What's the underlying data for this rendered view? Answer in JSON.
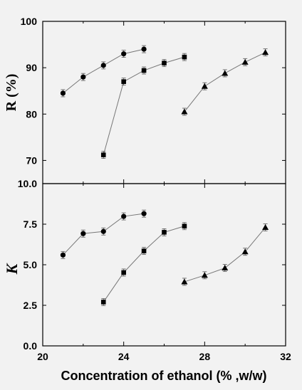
{
  "chart_data": [
    {
      "type": "line",
      "panel": "top",
      "ylabel": "R (%)",
      "xlim": [
        20,
        32
      ],
      "ylim": [
        65,
        100
      ],
      "yticks": [
        70,
        80,
        90,
        100
      ],
      "series": [
        {
          "marker": "circle",
          "x": [
            21,
            22,
            23,
            24,
            25
          ],
          "y": [
            84.5,
            88.0,
            90.5,
            93.0,
            94.0
          ]
        },
        {
          "marker": "square",
          "x": [
            23,
            24,
            25,
            26,
            27
          ],
          "y": [
            71.2,
            87.0,
            89.4,
            91.0,
            92.3
          ]
        },
        {
          "marker": "triangle",
          "x": [
            27,
            28,
            29,
            30,
            31
          ],
          "y": [
            80.5,
            86.0,
            88.8,
            91.2,
            93.3
          ]
        }
      ]
    },
    {
      "type": "line",
      "panel": "bottom",
      "ylabel": "K",
      "xlabel": "Concentration of ethanol (% ,w/w)",
      "xlim": [
        20,
        32
      ],
      "xticks": [
        20,
        24,
        28,
        32
      ],
      "ylim": [
        0,
        10
      ],
      "yticks": [
        "0.0",
        "2.5",
        "5.0",
        "7.5",
        "10.0"
      ],
      "series": [
        {
          "marker": "circle",
          "x": [
            21,
            22,
            23,
            24,
            25
          ],
          "y": [
            5.6,
            6.92,
            7.05,
            7.98,
            8.15
          ]
        },
        {
          "marker": "square",
          "x": [
            23,
            24,
            25,
            26,
            27
          ],
          "y": [
            2.7,
            4.52,
            5.85,
            7.0,
            7.38
          ]
        },
        {
          "marker": "triangle",
          "x": [
            27,
            28,
            29,
            30,
            31
          ],
          "y": [
            3.95,
            4.35,
            4.8,
            5.8,
            7.3
          ]
        }
      ]
    }
  ]
}
